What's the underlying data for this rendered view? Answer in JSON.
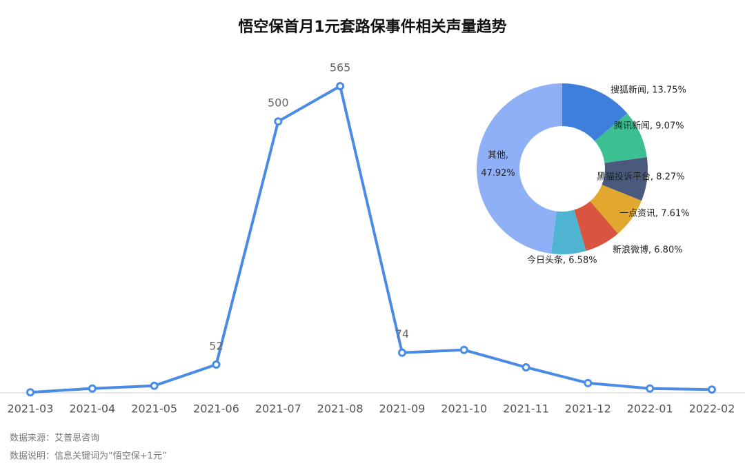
{
  "chart_data": [
    {
      "type": "line",
      "title": "悟空保首月1元套路保事件相关声量趋势",
      "categories": [
        "2021-03",
        "2021-04",
        "2021-05",
        "2021-06",
        "2021-07",
        "2021-08",
        "2021-09",
        "2021-10",
        "2021-11",
        "2021-12",
        "2022-01",
        "2022-02"
      ],
      "values": [
        1,
        8,
        13,
        52,
        500,
        565,
        74,
        79,
        47,
        18,
        8,
        6
      ],
      "value_labels": [
        null,
        null,
        null,
        "52",
        "500",
        "565",
        "74",
        null,
        null,
        null,
        null,
        null
      ],
      "color": "#4a8be6"
    },
    {
      "type": "pie",
      "categories": [
        "搜狐新闻",
        "腾讯新闻",
        "黑猫投诉平台",
        "一点资讯",
        "新浪微博",
        "今日头条",
        "其他"
      ],
      "values": [
        13.75,
        9.07,
        8.27,
        7.61,
        6.8,
        6.58,
        47.92
      ],
      "value_labels": [
        "搜狐新闻, 13.75%",
        "腾讯新闻, 9.07%",
        "黑猫投诉平台, 8.27%",
        "一点资讯, 7.61%",
        "新浪微博, 6.80%",
        "今日头条, 6.58%",
        "其他, 47.92%"
      ],
      "colors": [
        "#3e7fdc",
        "#3cc092",
        "#4a5a7c",
        "#e2a72e",
        "#d9553f",
        "#4fb3d2",
        "#8fb0f6"
      ]
    }
  ],
  "notes": [
    "数据来源：艾普思咨询",
    "数据说明：信息关键词为“悟空保+1元”"
  ]
}
